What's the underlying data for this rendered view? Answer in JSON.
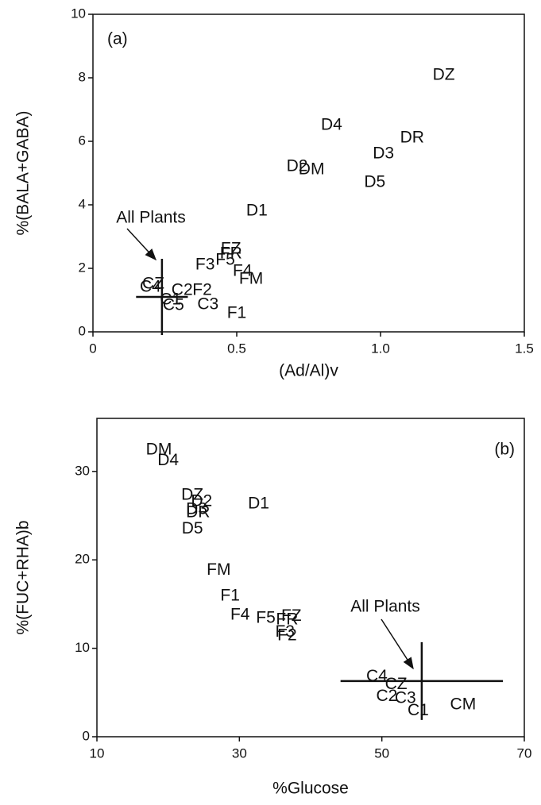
{
  "chart_data": [
    {
      "type": "scatter",
      "panel_label": "(a)",
      "xlabel": "(Ad/Al)v",
      "ylabel": "%(BALA+GABA)",
      "xlim": [
        0,
        1.5
      ],
      "xticks": [
        0,
        0.5,
        {
          "value": 1,
          "label": "1.0"
        },
        1.5
      ],
      "ylim": [
        0,
        10
      ],
      "yticks": [
        0,
        2,
        4,
        6,
        8,
        10
      ],
      "labels": [
        "DZ",
        "D4",
        "DR",
        "D3",
        "D2",
        "DM",
        "D5",
        "D1",
        "FZ",
        "FR",
        "F5",
        "F3",
        "F4",
        "FM",
        "F2",
        "F1",
        "CZ",
        "C4",
        "C2",
        "C1",
        "C5",
        "C3"
      ],
      "x": [
        1.22,
        0.83,
        1.11,
        1.01,
        0.71,
        0.76,
        0.98,
        0.57,
        0.48,
        0.48,
        0.46,
        0.39,
        0.52,
        0.55,
        0.38,
        0.5,
        0.21,
        0.2,
        0.31,
        0.27,
        0.28,
        0.4
      ],
      "y": [
        8.07,
        6.5,
        6.1,
        5.6,
        5.2,
        5.1,
        4.7,
        3.8,
        2.6,
        2.45,
        2.25,
        2.1,
        1.9,
        1.65,
        1.3,
        0.58,
        1.5,
        1.4,
        1.3,
        1.0,
        0.83,
        0.85
      ],
      "summary": {
        "label": "All Plants",
        "x": 0.24,
        "y": 1.1,
        "xerr": 0.09,
        "yerr": 1.2
      }
    },
    {
      "type": "scatter",
      "panel_label": "(b)",
      "xlabel": "%Glucose",
      "ylabel": "%(FUC+RHA)b",
      "xlim": [
        10,
        70
      ],
      "xticks": [
        10,
        30,
        50,
        70
      ],
      "ylim": [
        0,
        36
      ],
      "yticks": [
        0,
        10,
        20,
        30
      ],
      "labels": [
        "DM",
        "D4",
        "DZ",
        "D2",
        "D3",
        "DR",
        "D5",
        "D1",
        "FM",
        "F1",
        "F4",
        "F5",
        "FZ",
        "FR",
        "F3",
        "F2",
        "C4",
        "CZ",
        "C2",
        "C3",
        "C1",
        "CM"
      ],
      "x": [
        18.7,
        20,
        23.4,
        24.7,
        24,
        24.2,
        23.4,
        32.7,
        27.1,
        28.7,
        30.1,
        33.7,
        37.3,
        36.7,
        36.4,
        36.7,
        49.3,
        52,
        50.7,
        53.3,
        55.1,
        61.4
      ],
      "y": [
        32.4,
        31.2,
        27.3,
        26.6,
        25.7,
        25.3,
        23.5,
        26.3,
        18.8,
        15.9,
        13.75,
        13.4,
        13.6,
        13.2,
        11.8,
        11.4,
        6.8,
        5.9,
        4.55,
        4.3,
        2.9,
        3.6
      ],
      "summary": {
        "label": "All Plants",
        "x": 55.6,
        "y": 6.3,
        "xerr": 11.4,
        "yerr": 4.4
      }
    }
  ]
}
